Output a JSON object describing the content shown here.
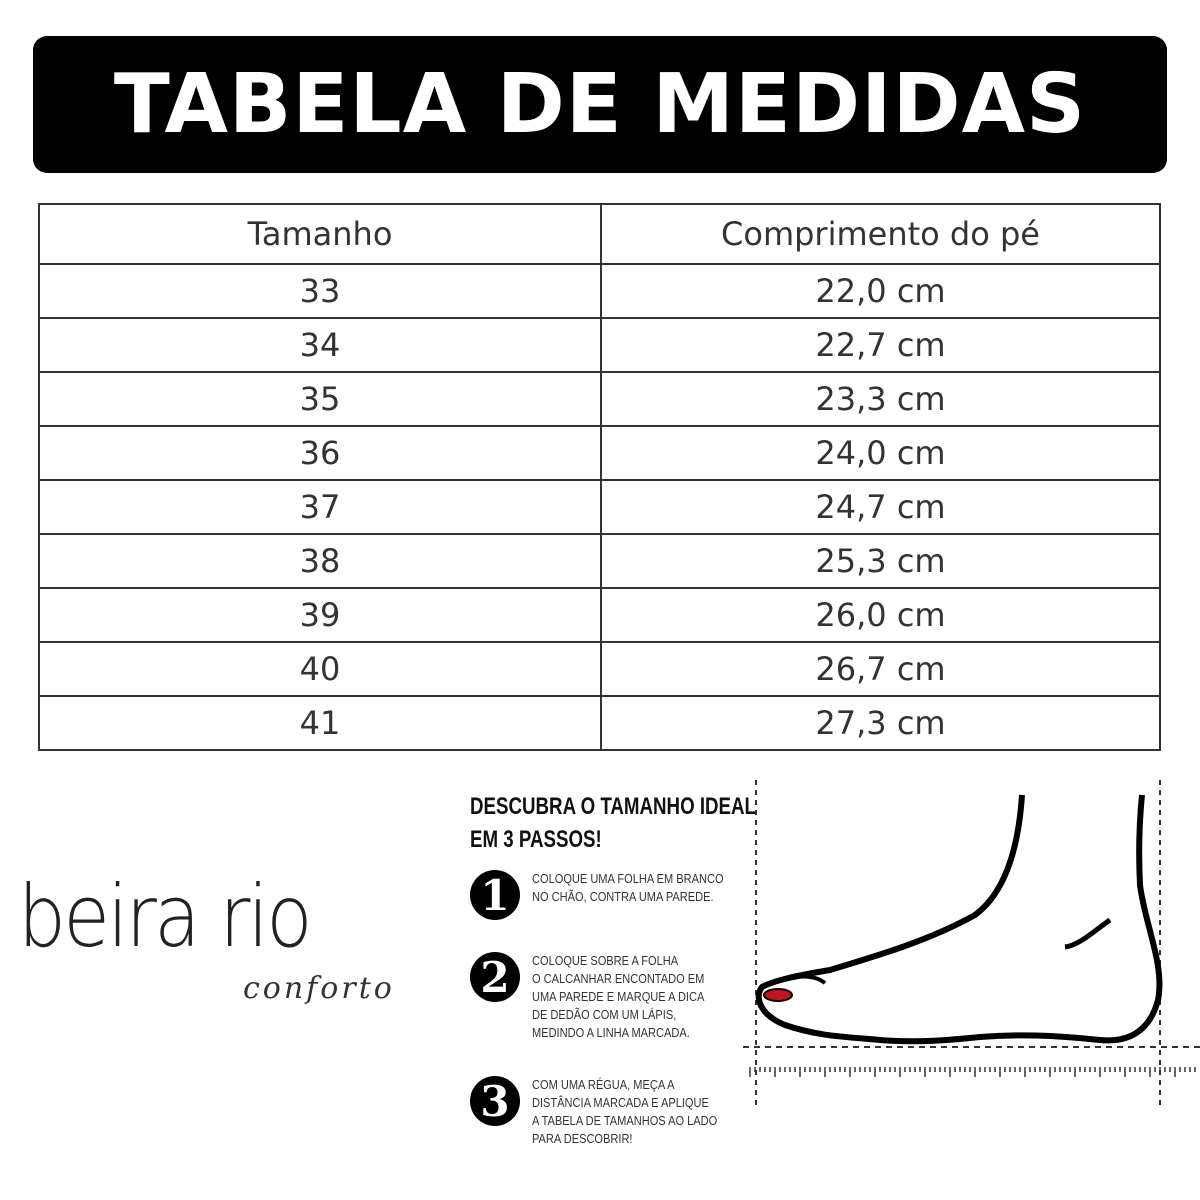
{
  "title": "TABELA DE MEDIDAS",
  "table": {
    "headers": [
      "Tamanho",
      "Comprimento do pé"
    ],
    "rows": [
      [
        "33",
        "22,0 cm"
      ],
      [
        "34",
        "22,7 cm"
      ],
      [
        "35",
        "23,3 cm"
      ],
      [
        "36",
        "24,0 cm"
      ],
      [
        "37",
        "24,7 cm"
      ],
      [
        "38",
        "25,3 cm"
      ],
      [
        "39",
        "26,0 cm"
      ],
      [
        "40",
        "26,7 cm"
      ],
      [
        "41",
        "27,3 cm"
      ]
    ]
  },
  "logo": {
    "main": "beira rio",
    "sub": "conforto"
  },
  "guide": {
    "title_line1": "DESCUBRA O TAMANHO IDEAL",
    "title_line2": "EM 3 PASSOS!",
    "steps": [
      {
        "number": "1",
        "text": "COLOQUE UMA FOLHA EM BRANCO\nNO CHÃO, CONTRA UMA PAREDE."
      },
      {
        "number": "2",
        "text": "COLOQUE SOBRE A FOLHA\nO CALCANHAR ENCONTADO EM\nUMA PAREDE E MARQUE A DICA\nDE DEDÃO COM UM LÁPIS,\nMEDINDO A LINHA MARCADA."
      },
      {
        "number": "3",
        "text": "COM UMA RÉGUA, MEÇA A\nDISTÂNCIA MARCADA E APLIQUE\nA TABELA DE TAMANHOS AO LADO\nPARA DESCOBRIR!"
      }
    ]
  },
  "colors": {
    "banner": "#000000",
    "toenail": "#c0141e"
  }
}
